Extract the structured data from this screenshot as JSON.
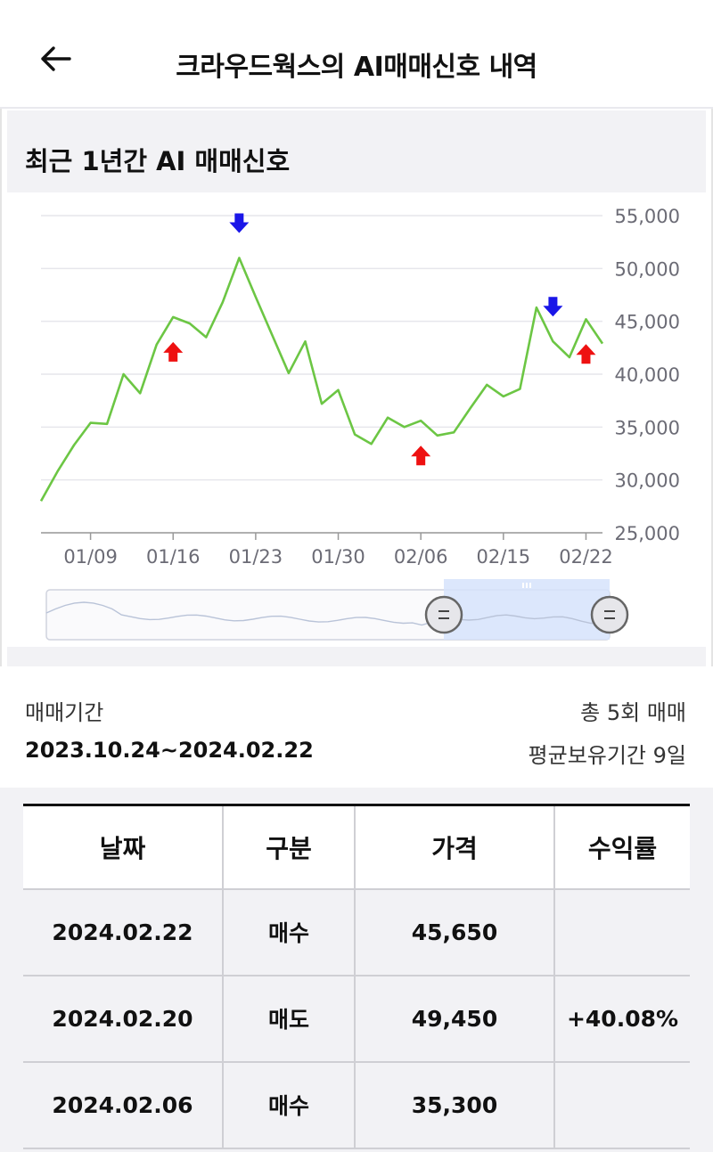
{
  "header": {
    "title": "크라우드웍스의 AI매매신호 내역",
    "back_icon": "arrow-left-icon"
  },
  "section": {
    "title": "최근 1년간 AI 매매신호"
  },
  "chart_data": {
    "type": "line",
    "ylim": [
      25000,
      55000
    ],
    "y_ticks": [
      "55,000",
      "50,000",
      "45,000",
      "40,000",
      "35,000",
      "30,000",
      "25,000"
    ],
    "y_tick_values": [
      55000,
      50000,
      45000,
      40000,
      35000,
      30000,
      25000
    ],
    "x_tick_labels": [
      "01/09",
      "01/16",
      "01/23",
      "01/30",
      "02/06",
      "02/15",
      "02/22"
    ],
    "x_tick_index": [
      3,
      8,
      13,
      18,
      23,
      28,
      33
    ],
    "series": [
      {
        "color": "#6cc644",
        "values": [
          28000,
          30800,
          33300,
          35400,
          35300,
          40000,
          38200,
          42800,
          45400,
          44800,
          43500,
          46800,
          51000,
          47300,
          43700,
          40100,
          43100,
          37200,
          38500,
          34300,
          33400,
          35900,
          35000,
          35600,
          34200,
          34500,
          36800,
          39000,
          37900,
          38600,
          46300,
          43100,
          41600,
          45200,
          42900
        ]
      }
    ],
    "signals": [
      {
        "type": "sell",
        "index": 12,
        "color": "#1a16e8"
      },
      {
        "type": "buy",
        "index": 8,
        "color": "#ee1111"
      },
      {
        "type": "buy",
        "index": 23,
        "color": "#ee1111"
      },
      {
        "type": "sell",
        "index": 31,
        "color": "#1a16e8"
      },
      {
        "type": "buy",
        "index": 33,
        "color": "#ee1111"
      }
    ],
    "grid": true,
    "navigator": true
  },
  "period": {
    "label": "매매기간",
    "range": "2023.10.24~2024.02.22",
    "trades": "총 5회 매매",
    "avg_hold": "평균보유기간 9일"
  },
  "table": {
    "headers": [
      "날짜",
      "구분",
      "가격",
      "수익률"
    ],
    "rows": [
      {
        "date": "2024.02.22",
        "type": "매수",
        "kind": "buy",
        "price": "45,650",
        "return": ""
      },
      {
        "date": "2024.02.20",
        "type": "매도",
        "kind": "sell",
        "price": "49,450",
        "return": "+40.08%"
      },
      {
        "date": "2024.02.06",
        "type": "매수",
        "kind": "buy",
        "price": "35,300",
        "return": ""
      }
    ]
  }
}
